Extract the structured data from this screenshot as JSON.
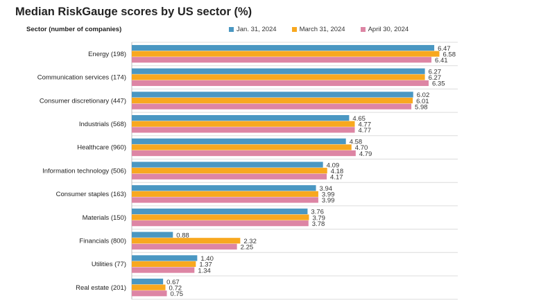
{
  "chart_data": {
    "type": "bar",
    "orientation": "horizontal",
    "title": "Median RiskGauge scores by US sector (%)",
    "ylabel": "Sector (number of companies)",
    "xlim": [
      0,
      7
    ],
    "grid": false,
    "legend_position": "top",
    "categories": [
      "Energy (198)",
      "Communication services (174)",
      "Consumer discretionary (447)",
      "Industrials (568)",
      "Healthcare (960)",
      "Information technology (506)",
      "Consumer staples (163)",
      "Materials (150)",
      "Financials (800)",
      "Utilities (77)",
      "Real estate (201)"
    ],
    "series": [
      {
        "name": "Jan. 31, 2024",
        "color": "#4a97c2",
        "values": [
          6.47,
          6.27,
          6.02,
          4.65,
          4.58,
          4.09,
          3.94,
          3.76,
          0.88,
          1.4,
          0.67
        ]
      },
      {
        "name": "March 31, 2024",
        "color": "#f8a81f",
        "values": [
          6.58,
          6.27,
          6.01,
          4.77,
          4.7,
          4.18,
          3.99,
          3.79,
          2.32,
          1.37,
          0.72
        ]
      },
      {
        "name": "April 30, 2024",
        "color": "#dd85a4",
        "values": [
          6.41,
          6.35,
          5.98,
          4.77,
          4.79,
          4.17,
          3.99,
          3.78,
          2.25,
          1.34,
          0.75
        ]
      }
    ]
  }
}
